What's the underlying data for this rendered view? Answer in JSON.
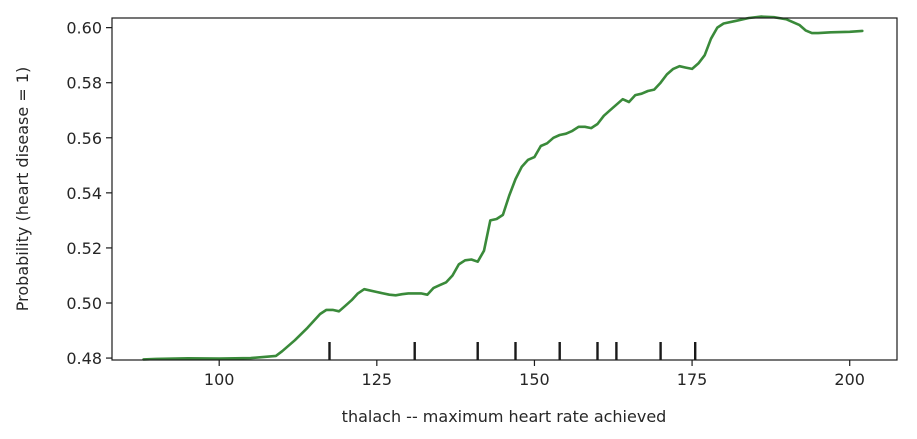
{
  "chart_data": {
    "type": "line",
    "title": "",
    "xlabel": "thalach -- maximum heart rate achieved",
    "ylabel": "Probability (heart disease = 1)",
    "xlim": [
      83,
      207.5
    ],
    "ylim": [
      0.4793,
      0.6035
    ],
    "xticks": [
      100,
      125,
      150,
      175,
      200
    ],
    "yticks": [
      0.48,
      0.5,
      0.52,
      0.54,
      0.56,
      0.58,
      0.6
    ],
    "xtick_labels": [
      "100",
      "125",
      "150",
      "175",
      "200"
    ],
    "ytick_labels": [
      "0.48",
      "0.50",
      "0.52",
      "0.54",
      "0.56",
      "0.58",
      "0.60"
    ],
    "grid": false,
    "line_color": "#3a8a3a",
    "series": [
      {
        "x": [
          88,
          90,
          95,
          100,
          105,
          109,
          110,
          112,
          114,
          116,
          117,
          118,
          119,
          120,
          121,
          122,
          123,
          125,
          127,
          128,
          129,
          130,
          131,
          132,
          133,
          134,
          135,
          136,
          137,
          138,
          139,
          140,
          141,
          142,
          143,
          144,
          145,
          146,
          147,
          148,
          149,
          150,
          151,
          152,
          153,
          154,
          155,
          156,
          157,
          158,
          159,
          160,
          161,
          162,
          163,
          164,
          165,
          166,
          167,
          168,
          169,
          170,
          171,
          172,
          173,
          174,
          175,
          176,
          177,
          178,
          179,
          180,
          182,
          184,
          186,
          188,
          190,
          192,
          193,
          194,
          195,
          197,
          200,
          202
        ],
        "y": [
          0.4795,
          0.4797,
          0.4799,
          0.4798,
          0.48,
          0.4808,
          0.4825,
          0.4865,
          0.491,
          0.496,
          0.4975,
          0.4975,
          0.497,
          0.499,
          0.501,
          0.5035,
          0.505,
          0.504,
          0.503,
          0.5028,
          0.5032,
          0.5035,
          0.5035,
          0.5035,
          0.503,
          0.5055,
          0.5065,
          0.5075,
          0.51,
          0.514,
          0.5155,
          0.5158,
          0.515,
          0.519,
          0.53,
          0.5305,
          0.532,
          0.539,
          0.545,
          0.5495,
          0.552,
          0.553,
          0.557,
          0.558,
          0.56,
          0.561,
          0.5615,
          0.5625,
          0.564,
          0.564,
          0.5635,
          0.565,
          0.568,
          0.57,
          0.572,
          0.574,
          0.573,
          0.5755,
          0.576,
          0.577,
          0.5775,
          0.58,
          0.583,
          0.585,
          0.586,
          0.5855,
          0.585,
          0.587,
          0.59,
          0.596,
          0.6,
          0.6015,
          0.6025,
          0.6035,
          0.604,
          0.6038,
          0.603,
          0.601,
          0.599,
          0.598,
          0.598,
          0.5983,
          0.5985,
          0.5988
        ]
      }
    ],
    "rug": [
      117.5,
      131,
      141,
      147,
      154,
      160,
      163,
      170,
      175.5
    ]
  }
}
